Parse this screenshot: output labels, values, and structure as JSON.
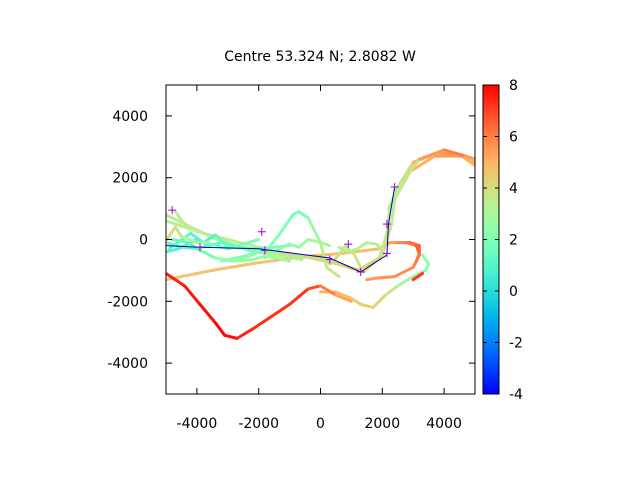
{
  "chart_data": {
    "type": "scatter",
    "title": "Centre 53.324 N; 2.8082  W",
    "xlabel": "",
    "ylabel": "",
    "xlim": [
      -5000,
      5000
    ],
    "ylim": [
      -5000,
      5000
    ],
    "x_ticks": [
      -4000,
      -2000,
      0,
      2000,
      4000
    ],
    "y_ticks": [
      -4000,
      -2000,
      0,
      2000,
      4000
    ],
    "x_tick_labels": [
      "-4000",
      "-2000",
      "0",
      "2000",
      "4000"
    ],
    "y_tick_labels": [
      "-4000",
      "-2000",
      "0",
      "2000",
      "4000"
    ],
    "colorbar": {
      "range": [
        -4,
        8
      ],
      "ticks": [
        -4,
        -2,
        0,
        2,
        4,
        6,
        8
      ],
      "tick_labels": [
        "-4",
        "-2",
        "0",
        "2",
        "4",
        "6",
        "8"
      ],
      "palette": "rainbow"
    },
    "grid": false,
    "tracks": [
      {
        "name": "",
        "points": [
          [
            -5000,
            -1300,
            4.6
          ],
          [
            -3500,
            -1000,
            4.6
          ],
          [
            -2000,
            -750,
            4.7
          ],
          [
            -500,
            -550,
            4.8
          ],
          [
            700,
            -450,
            4.8
          ],
          [
            1900,
            -300,
            4.7
          ],
          [
            2200,
            -150,
            4.5
          ]
        ]
      },
      {
        "name": "",
        "points": [
          [
            -5000,
            800,
            3.5
          ],
          [
            -4200,
            400,
            3.6
          ],
          [
            -3000,
            -150,
            3.4
          ],
          [
            -2000,
            -350,
            3.2
          ],
          [
            -1000,
            -550,
            3.4
          ],
          [
            0,
            -600,
            3.8
          ],
          [
            1200,
            -1000,
            4.5
          ],
          [
            1900,
            -600,
            4.0
          ],
          [
            2150,
            200,
            3.4
          ],
          [
            2250,
            1100,
            3.8
          ],
          [
            2500,
            1700,
            3.1
          ],
          [
            3000,
            2500,
            4.5
          ],
          [
            3800,
            2800,
            5.6
          ],
          [
            4500,
            2750,
            5.4
          ],
          [
            5000,
            2400,
            4.8
          ]
        ]
      },
      {
        "name": "",
        "points": [
          [
            -5000,
            600,
            3.3
          ],
          [
            -3800,
            200,
            3.4
          ],
          [
            -2600,
            -100,
            3.2
          ],
          [
            -1400,
            -400,
            3.5
          ],
          [
            -300,
            -600,
            3.9
          ],
          [
            800,
            -850,
            4.4
          ],
          [
            1400,
            -1050,
            4.4
          ],
          [
            2000,
            -500,
            4.0
          ],
          [
            2300,
            500,
            3.6
          ],
          [
            2400,
            1300,
            3.3
          ],
          [
            2900,
            2200,
            4.4
          ],
          [
            3700,
            2700,
            5.7
          ],
          [
            4600,
            2700,
            5.3
          ],
          [
            5000,
            2500,
            4.7
          ]
        ]
      },
      {
        "name": "",
        "points": [
          [
            -4700,
            900,
            3.2
          ],
          [
            -4400,
            500,
            3.4
          ],
          [
            -3600,
            100,
            3.3
          ],
          [
            -2700,
            -200,
            3.0
          ],
          [
            -1700,
            -450,
            3.4
          ],
          [
            -600,
            -650,
            3.7
          ]
        ]
      },
      {
        "name": "",
        "points": [
          [
            2200,
            1000,
            3.4
          ],
          [
            2600,
            1800,
            2.8
          ],
          [
            3200,
            2600,
            4.8
          ],
          [
            4000,
            2900,
            6.2
          ],
          [
            4700,
            2700,
            5.9
          ],
          [
            5000,
            2600,
            5.0
          ]
        ]
      },
      {
        "name": "",
        "points": [
          [
            -5000,
            -400,
            0.9
          ],
          [
            -4600,
            -300,
            1.0
          ],
          [
            -4300,
            -150,
            0.8
          ],
          [
            -4000,
            0,
            0.6
          ],
          [
            -3600,
            -200,
            0.9
          ],
          [
            -3200,
            -100,
            1.2
          ],
          [
            -2800,
            -200,
            1.5
          ],
          [
            -2300,
            -350,
            1.8
          ],
          [
            -1800,
            -450,
            1.8
          ]
        ]
      },
      {
        "name": "",
        "points": [
          [
            -5000,
            -100,
            1.3
          ],
          [
            -4500,
            -250,
            1.4
          ],
          [
            -4000,
            -300,
            1.2
          ],
          [
            -3500,
            -150,
            1.5
          ],
          [
            -3000,
            -300,
            1.7
          ],
          [
            -2500,
            -150,
            1.8
          ],
          [
            -2000,
            0,
            1.6
          ]
        ]
      },
      {
        "name": "",
        "points": [
          [
            -4900,
            -300,
            1.0
          ],
          [
            -4200,
            200,
            1.2
          ],
          [
            -3800,
            -100,
            0.7
          ],
          [
            -3400,
            150,
            1.1
          ],
          [
            -3000,
            -250,
            1.6
          ],
          [
            -2200,
            -300,
            1.6
          ],
          [
            -1500,
            -250,
            1.9
          ],
          [
            -1000,
            -200,
            1.6
          ]
        ]
      },
      {
        "name": "",
        "points": [
          [
            -4800,
            0,
            1.4
          ],
          [
            -4300,
            -100,
            1.1
          ],
          [
            -3900,
            -350,
            1.3
          ],
          [
            -3400,
            -600,
            2.2
          ],
          [
            -2800,
            -700,
            2.5
          ],
          [
            -2200,
            -500,
            2.4
          ],
          [
            -1800,
            -300,
            1.8
          ]
        ]
      },
      {
        "name": "",
        "points": [
          [
            -3200,
            -700,
            2.3
          ],
          [
            -2500,
            -550,
            2.1
          ],
          [
            -1700,
            -300,
            2.2
          ],
          [
            -1300,
            200,
            2.1
          ],
          [
            -900,
            800,
            1.8
          ],
          [
            -700,
            900,
            1.5
          ],
          [
            -400,
            700,
            2.3
          ],
          [
            0,
            -100,
            3.1
          ],
          [
            200,
            -900,
            3.6
          ],
          [
            600,
            -1200,
            3.9
          ]
        ]
      },
      {
        "name": "",
        "points": [
          [
            -1800,
            -600,
            2.5
          ],
          [
            -1400,
            -350,
            2.3
          ],
          [
            -1000,
            -150,
            2.4
          ],
          [
            -700,
            -250,
            2.6
          ],
          [
            -400,
            0,
            2.7
          ],
          [
            0,
            -100,
            2.9
          ],
          [
            300,
            -200,
            2.8
          ]
        ]
      },
      {
        "name": "",
        "points": [
          [
            -2700,
            -700,
            2.6
          ],
          [
            -2200,
            -650,
            2.4
          ],
          [
            -1800,
            -550,
            2.6
          ],
          [
            -1400,
            -600,
            2.8
          ],
          [
            -1000,
            -700,
            3.0
          ]
        ]
      },
      {
        "name": "",
        "points": [
          [
            -5000,
            -50,
            4.2
          ],
          [
            -4700,
            400,
            4.0
          ],
          [
            -4500,
            100,
            3.4
          ],
          [
            -4000,
            -100,
            3.0
          ],
          [
            -3600,
            -100,
            2.5
          ]
        ]
      },
      {
        "name": "",
        "points": [
          [
            600,
            -250,
            3.8
          ],
          [
            900,
            -400,
            3.5
          ],
          [
            1200,
            -300,
            3.3
          ],
          [
            1500,
            -100,
            3.0
          ],
          [
            1800,
            -150,
            3.2
          ],
          [
            2000,
            -300,
            3.6
          ]
        ]
      },
      {
        "name": "",
        "points": [
          [
            300,
            -800,
            3.9
          ],
          [
            600,
            -500,
            3.6
          ],
          [
            800,
            -200,
            3.3
          ],
          [
            1100,
            -500,
            3.4
          ],
          [
            1300,
            -900,
            3.9
          ]
        ]
      },
      {
        "name": "",
        "points": [
          [
            0,
            -1700,
            5.2
          ],
          [
            500,
            -1700,
            5.0
          ],
          [
            1000,
            -1900,
            4.4
          ],
          [
            1300,
            -2100,
            4.3
          ],
          [
            1700,
            -2200,
            4.4
          ],
          [
            2100,
            -1800,
            4.1
          ],
          [
            2500,
            -1500,
            3.3
          ],
          [
            3000,
            -1200,
            2.9
          ],
          [
            3400,
            -1000,
            2.4
          ],
          [
            3500,
            -800,
            2.2
          ],
          [
            3300,
            -500,
            2.6
          ]
        ]
      },
      {
        "name": "",
        "points": [
          [
            2200,
            -100,
            5.3
          ],
          [
            2500,
            -100,
            5.6
          ],
          [
            2900,
            -100,
            6.3
          ],
          [
            3200,
            -200,
            6.6
          ],
          [
            3200,
            -500,
            6.2
          ],
          [
            3000,
            -900,
            5.7
          ],
          [
            2400,
            -1200,
            5.7
          ],
          [
            1800,
            -1250,
            5.7
          ],
          [
            1500,
            -1300,
            5.3
          ]
        ]
      },
      {
        "name": "",
        "points": [
          [
            -5000,
            -1100,
            7.5
          ],
          [
            -4400,
            -1500,
            7.6
          ],
          [
            -3900,
            -2100,
            7.7
          ],
          [
            -3400,
            -2700,
            7.9
          ],
          [
            -3100,
            -3100,
            8.0
          ],
          [
            -2700,
            -3200,
            7.6
          ],
          [
            -2200,
            -2900,
            7.4
          ],
          [
            -1600,
            -2500,
            7.3
          ],
          [
            -1000,
            -2100,
            7.2
          ],
          [
            -400,
            -1600,
            7.3
          ],
          [
            0,
            -1500,
            6.4
          ],
          [
            500,
            -1800,
            5.7
          ],
          [
            1000,
            -2000,
            5.0
          ]
        ]
      },
      {
        "name": "",
        "points": [
          [
            3000,
            -1300,
            7.0
          ],
          [
            3300,
            -1100,
            7.4
          ]
        ]
      },
      {
        "name": "",
        "points": [
          [
            2800,
            -100,
            6.0
          ],
          [
            3100,
            -200,
            6.4
          ],
          [
            3200,
            -450,
            6.6
          ],
          [
            3100,
            -700,
            5.8
          ]
        ]
      }
    ],
    "route_line": {
      "color": "#0000aa",
      "points": [
        [
          -5000,
          -200
        ],
        [
          -3900,
          -250
        ],
        [
          -2000,
          -300
        ],
        [
          300,
          -600
        ],
        [
          1300,
          -1050
        ],
        [
          2150,
          -500
        ],
        [
          2200,
          500
        ],
        [
          2400,
          1700
        ]
      ]
    },
    "markers": {
      "color": "#9400d3",
      "symbol": "+",
      "points": [
        [
          -4800,
          950
        ],
        [
          -3900,
          -250
        ],
        [
          -1900,
          250
        ],
        [
          -1800,
          -350
        ],
        [
          900,
          -150
        ],
        [
          300,
          -650
        ],
        [
          1300,
          -1050
        ],
        [
          2150,
          -450
        ],
        [
          2150,
          500
        ],
        [
          2400,
          1700
        ]
      ]
    }
  }
}
